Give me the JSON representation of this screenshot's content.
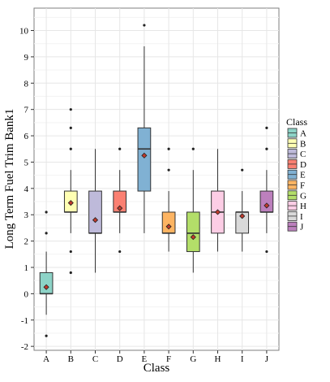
{
  "chart_data": {
    "type": "box",
    "xlabel": "Class",
    "ylabel": "Long Term Fuel Trim Bank1",
    "ylim": [
      -2.15,
      10.85
    ],
    "yticks": [
      -2,
      -1,
      0,
      1,
      2,
      3,
      4,
      5,
      6,
      7,
      8,
      9,
      10
    ],
    "grid": true,
    "legend": {
      "title": "Class",
      "placement": "right"
    },
    "categories": [
      "A",
      "B",
      "C",
      "D",
      "E",
      "F",
      "G",
      "H",
      "I",
      "J"
    ],
    "colors": [
      "#8DD3C7",
      "#FFFFB3",
      "#BEBADA",
      "#FB8072",
      "#80B1D3",
      "#FDB462",
      "#B3DE69",
      "#FCCDE5",
      "#D9D9D9",
      "#BC80BD"
    ],
    "boxes": [
      {
        "class": "A",
        "whisker_low": -0.8,
        "q1": 0.0,
        "median": 0.0,
        "q3": 0.8,
        "whisker_high": 1.6,
        "mean": 0.25,
        "outliers": [
          -1.6,
          2.3,
          3.1
        ]
      },
      {
        "class": "B",
        "whisker_low": 2.3,
        "q1": 3.1,
        "median": 3.1,
        "q3": 3.9,
        "whisker_high": 4.7,
        "mean": 3.45,
        "outliers": [
          0.8,
          1.6,
          5.5,
          6.3,
          7.0
        ]
      },
      {
        "class": "C",
        "whisker_low": 0.8,
        "q1": 2.3,
        "median": 2.3,
        "q3": 3.9,
        "whisker_high": 5.5,
        "mean": 2.8,
        "outliers": []
      },
      {
        "class": "D",
        "whisker_low": 2.3,
        "q1": 3.1,
        "median": 3.1,
        "q3": 3.9,
        "whisker_high": 4.7,
        "mean": 3.25,
        "outliers": [
          1.6,
          5.5
        ]
      },
      {
        "class": "E",
        "whisker_low": 2.3,
        "q1": 3.9,
        "median": 5.5,
        "q3": 6.3,
        "whisker_high": 9.4,
        "mean": 5.25,
        "outliers": [
          10.2
        ]
      },
      {
        "class": "F",
        "whisker_low": 1.6,
        "q1": 2.3,
        "median": 2.3,
        "q3": 3.1,
        "whisker_high": 3.9,
        "mean": 2.55,
        "outliers": [
          4.7,
          5.5
        ]
      },
      {
        "class": "G",
        "whisker_low": 0.8,
        "q1": 1.6,
        "median": 2.3,
        "q3": 3.1,
        "whisker_high": 4.7,
        "mean": 2.15,
        "outliers": [
          5.5
        ]
      },
      {
        "class": "H",
        "whisker_low": 1.6,
        "q1": 2.3,
        "median": 3.1,
        "q3": 3.9,
        "whisker_high": 5.5,
        "mean": 3.1,
        "outliers": []
      },
      {
        "class": "I",
        "whisker_low": 1.6,
        "q1": 2.3,
        "median": 3.1,
        "q3": 3.1,
        "whisker_high": 3.9,
        "mean": 2.95,
        "outliers": [
          4.7
        ]
      },
      {
        "class": "J",
        "whisker_low": 2.3,
        "q1": 3.1,
        "median": 3.1,
        "q3": 3.9,
        "whisker_high": 4.7,
        "mean": 3.35,
        "outliers": [
          1.6,
          5.5,
          6.3
        ]
      }
    ]
  }
}
